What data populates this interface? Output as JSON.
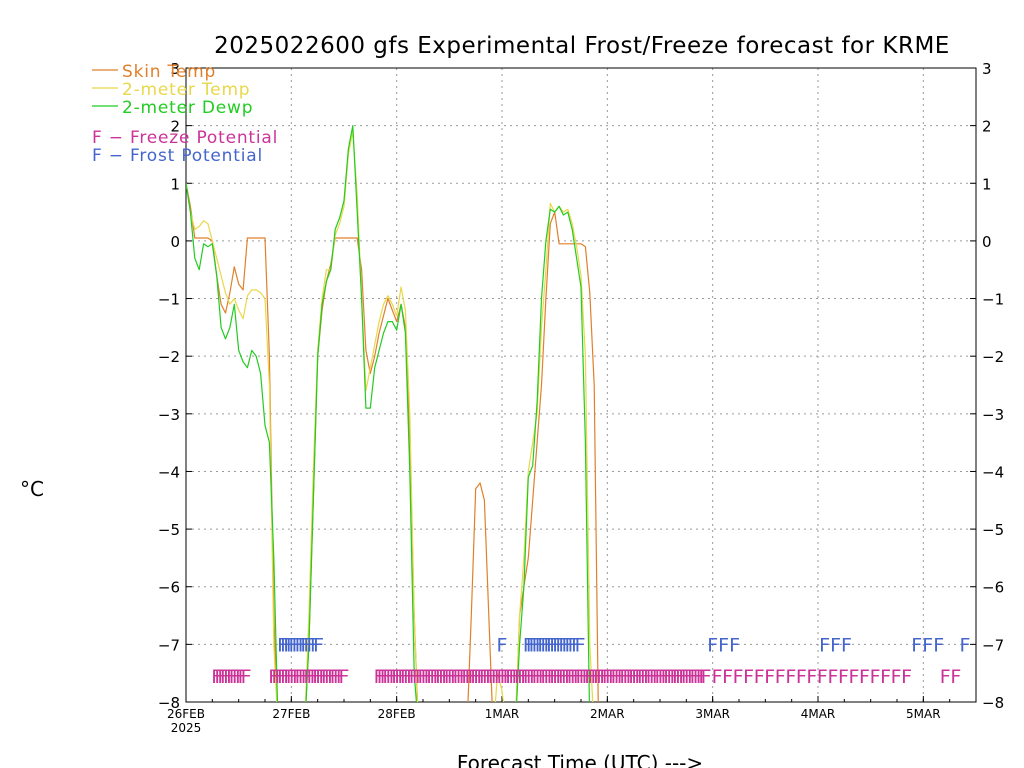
{
  "chart_data": {
    "type": "line",
    "title": "2025022600 gfs Experimental Frost/Freeze forecast for KRME",
    "xlabel": "Forecast Time (UTC) --->",
    "ylabel": "°C",
    "ylim": [
      -8,
      3
    ],
    "yticks": [
      3,
      2,
      1,
      0,
      -1,
      -2,
      -3,
      -4,
      -5,
      -6,
      -7,
      -8
    ],
    "ytick_labels": [
      "3",
      "2",
      "1",
      "0",
      "−1",
      "−2",
      "−3",
      "−4",
      "−5",
      "−6",
      "−7",
      "−8"
    ],
    "xlim": [
      0,
      180
    ],
    "x_unit": "hours after 2025-02-26 00 UTC",
    "xticks": [
      {
        "x": 0,
        "label": "26FEB",
        "sublabel": "2025"
      },
      {
        "x": 24,
        "label": "27FEB",
        "sublabel": ""
      },
      {
        "x": 48,
        "label": "28FEB",
        "sublabel": ""
      },
      {
        "x": 72,
        "label": "1MAR",
        "sublabel": ""
      },
      {
        "x": 96,
        "label": "2MAR",
        "sublabel": ""
      },
      {
        "x": 120,
        "label": "3MAR",
        "sublabel": ""
      },
      {
        "x": 144,
        "label": "4MAR",
        "sublabel": ""
      },
      {
        "x": 168,
        "label": "5MAR",
        "sublabel": ""
      }
    ],
    "grid": true,
    "legend_position": "top-left",
    "series": [
      {
        "name": "Skin Temp",
        "color": "#e0802c",
        "points": [
          [
            0,
            1.0
          ],
          [
            1,
            0.6
          ],
          [
            2,
            0.05
          ],
          [
            3,
            0.05
          ],
          [
            4,
            0.05
          ],
          [
            5,
            0.05
          ],
          [
            6,
            0.0
          ],
          [
            7,
            -0.6
          ],
          [
            8,
            -1.1
          ],
          [
            9,
            -1.25
          ],
          [
            10,
            -0.9
          ],
          [
            11,
            -0.45
          ],
          [
            12,
            -0.75
          ],
          [
            13,
            -0.85
          ],
          [
            14,
            0.05
          ],
          [
            15,
            0.05
          ],
          [
            16,
            0.05
          ],
          [
            17,
            0.05
          ],
          [
            18,
            0.05
          ],
          [
            19,
            -2.0
          ],
          [
            20,
            -6.5
          ],
          [
            21,
            -8.5
          ],
          [
            27,
            -8.5
          ],
          [
            28,
            -7.0
          ],
          [
            29,
            -4.5
          ],
          [
            30,
            -2.0
          ],
          [
            31,
            -1.2
          ],
          [
            32,
            -0.7
          ],
          [
            33,
            -0.4
          ],
          [
            34,
            0.05
          ],
          [
            35,
            0.05
          ],
          [
            36,
            0.05
          ],
          [
            37,
            0.05
          ],
          [
            38,
            0.05
          ],
          [
            39,
            0.05
          ],
          [
            40,
            -0.5
          ],
          [
            41,
            -1.9
          ],
          [
            42,
            -2.3
          ],
          [
            43,
            -2.0
          ],
          [
            44,
            -1.6
          ],
          [
            45,
            -1.3
          ],
          [
            46,
            -1.0
          ],
          [
            47,
            -1.2
          ],
          [
            48,
            -1.4
          ],
          [
            49,
            -1.1
          ],
          [
            50,
            -1.5
          ],
          [
            51,
            -3.5
          ],
          [
            52,
            -6.5
          ],
          [
            53,
            -8.5
          ],
          [
            64,
            -8.5
          ],
          [
            65,
            -6.5
          ],
          [
            66,
            -4.3
          ],
          [
            67,
            -4.2
          ],
          [
            68,
            -4.5
          ],
          [
            69,
            -6.5
          ],
          [
            70,
            -8.5
          ],
          [
            75,
            -8.5
          ],
          [
            76,
            -6.5
          ],
          [
            77,
            -6.0
          ],
          [
            78,
            -5.5
          ],
          [
            79,
            -4.5
          ],
          [
            80,
            -3.5
          ],
          [
            81,
            -2.5
          ],
          [
            82,
            -1.0
          ],
          [
            83,
            0.3
          ],
          [
            84,
            0.5
          ],
          [
            85,
            -0.05
          ],
          [
            86,
            -0.05
          ],
          [
            87,
            -0.05
          ],
          [
            88,
            -0.05
          ],
          [
            89,
            -0.05
          ],
          [
            90,
            -0.05
          ],
          [
            91,
            -0.1
          ],
          [
            92,
            -0.9
          ],
          [
            93,
            -2.5
          ],
          [
            94,
            -8.5
          ]
        ]
      },
      {
        "name": "2-meter Temp",
        "color": "#e8d84a",
        "points": [
          [
            0,
            1.0
          ],
          [
            1,
            0.5
          ],
          [
            2,
            0.2
          ],
          [
            3,
            0.25
          ],
          [
            4,
            0.35
          ],
          [
            5,
            0.3
          ],
          [
            6,
            0.0
          ],
          [
            7,
            -0.3
          ],
          [
            8,
            -0.6
          ],
          [
            9,
            -0.9
          ],
          [
            10,
            -1.1
          ],
          [
            11,
            -1.0
          ],
          [
            12,
            -1.2
          ],
          [
            13,
            -1.35
          ],
          [
            14,
            -0.95
          ],
          [
            15,
            -0.85
          ],
          [
            16,
            -0.85
          ],
          [
            17,
            -0.9
          ],
          [
            18,
            -1.0
          ],
          [
            19,
            -2.5
          ],
          [
            20,
            -7.0
          ],
          [
            21,
            -8.5
          ],
          [
            27,
            -8.5
          ],
          [
            28,
            -6.5
          ],
          [
            29,
            -4.0
          ],
          [
            30,
            -1.9
          ],
          [
            31,
            -1.0
          ],
          [
            32,
            -0.5
          ],
          [
            33,
            -0.5
          ],
          [
            34,
            0.1
          ],
          [
            35,
            0.3
          ],
          [
            36,
            0.6
          ],
          [
            37,
            1.5
          ],
          [
            38,
            1.9
          ],
          [
            39,
            0.8
          ],
          [
            40,
            -1.0
          ],
          [
            41,
            -2.6
          ],
          [
            42,
            -2.2
          ],
          [
            43,
            -1.8
          ],
          [
            44,
            -1.4
          ],
          [
            45,
            -1.1
          ],
          [
            46,
            -0.95
          ],
          [
            47,
            -1.1
          ],
          [
            48,
            -1.3
          ],
          [
            49,
            -0.8
          ],
          [
            50,
            -1.2
          ],
          [
            51,
            -3.0
          ],
          [
            52,
            -6.5
          ],
          [
            53,
            -8.5
          ],
          [
            70,
            -8.5
          ],
          [
            71,
            -7.5
          ],
          [
            72,
            -7.8
          ],
          [
            73,
            -8.5
          ],
          [
            75,
            -8.5
          ],
          [
            76,
            -6.5
          ],
          [
            77,
            -5.5
          ],
          [
            78,
            -4.0
          ],
          [
            79,
            -3.5
          ],
          [
            80,
            -3.0
          ],
          [
            81,
            -1.5
          ],
          [
            82,
            -0.5
          ],
          [
            83,
            0.65
          ],
          [
            84,
            0.5
          ],
          [
            85,
            0.6
          ],
          [
            86,
            0.5
          ],
          [
            87,
            0.55
          ],
          [
            88,
            0.3
          ],
          [
            89,
            -0.1
          ],
          [
            90,
            -0.6
          ],
          [
            91,
            -2.0
          ],
          [
            92,
            -7.0
          ],
          [
            93,
            -8.5
          ]
        ]
      },
      {
        "name": "2-meter Dewp",
        "color": "#22cc22",
        "points": [
          [
            0,
            1.0
          ],
          [
            1,
            0.5
          ],
          [
            2,
            -0.3
          ],
          [
            3,
            -0.5
          ],
          [
            4,
            -0.05
          ],
          [
            5,
            -0.1
          ],
          [
            6,
            -0.05
          ],
          [
            7,
            -0.6
          ],
          [
            8,
            -1.5
          ],
          [
            9,
            -1.7
          ],
          [
            10,
            -1.5
          ],
          [
            11,
            -1.1
          ],
          [
            12,
            -1.9
          ],
          [
            13,
            -2.1
          ],
          [
            14,
            -2.2
          ],
          [
            15,
            -1.9
          ],
          [
            16,
            -2.0
          ],
          [
            17,
            -2.3
          ],
          [
            18,
            -3.2
          ],
          [
            19,
            -3.5
          ],
          [
            20,
            -5.5
          ],
          [
            21,
            -8.5
          ],
          [
            27,
            -8.5
          ],
          [
            28,
            -7.0
          ],
          [
            29,
            -4.5
          ],
          [
            30,
            -2.0
          ],
          [
            31,
            -1.1
          ],
          [
            32,
            -0.7
          ],
          [
            33,
            -0.5
          ],
          [
            34,
            0.2
          ],
          [
            35,
            0.4
          ],
          [
            36,
            0.7
          ],
          [
            37,
            1.6
          ],
          [
            38,
            2.0
          ],
          [
            39,
            0.5
          ],
          [
            40,
            -1.0
          ],
          [
            41,
            -2.9
          ],
          [
            42,
            -2.9
          ],
          [
            43,
            -2.2
          ],
          [
            44,
            -1.9
          ],
          [
            45,
            -1.6
          ],
          [
            46,
            -1.4
          ],
          [
            47,
            -1.4
          ],
          [
            48,
            -1.55
          ],
          [
            49,
            -1.1
          ],
          [
            50,
            -1.6
          ],
          [
            51,
            -4.0
          ],
          [
            52,
            -7.5
          ],
          [
            53,
            -8.5
          ],
          [
            75,
            -8.5
          ],
          [
            76,
            -7.0
          ],
          [
            77,
            -6.0
          ],
          [
            78,
            -4.1
          ],
          [
            79,
            -3.9
          ],
          [
            80,
            -2.8
          ],
          [
            81,
            -1.0
          ],
          [
            82,
            0.0
          ],
          [
            83,
            0.55
          ],
          [
            84,
            0.5
          ],
          [
            85,
            0.6
          ],
          [
            86,
            0.45
          ],
          [
            87,
            0.5
          ],
          [
            88,
            0.2
          ],
          [
            89,
            -0.3
          ],
          [
            90,
            -0.8
          ],
          [
            91,
            -3.5
          ],
          [
            92,
            -8.5
          ]
        ]
      }
    ],
    "annotations": [
      {
        "text": "F − Freeze Potential",
        "color": "#cc3399"
      },
      {
        "text": "F − Frost Potential",
        "color": "#4466cc"
      }
    ],
    "flags": {
      "marker": "F",
      "frost": {
        "color": "#4466cc",
        "y": -7.0,
        "hours": [
          22,
          22.7,
          23.4,
          24,
          24.6,
          25.3,
          26,
          26.7,
          27.3,
          28,
          28.7,
          29.5,
          30.2,
          72,
          78,
          78.7,
          79.3,
          80,
          80.7,
          81.3,
          82,
          82.7,
          83.3,
          84,
          84.7,
          85.4,
          86.1,
          86.8,
          87.5,
          88.2,
          89,
          89.8,
          120,
          122.5,
          125,
          145.5,
          148,
          150.5,
          166.5,
          169,
          171.5,
          177.5
        ]
      },
      "freeze": {
        "color": "#cc3399",
        "y": -7.55,
        "hours": [
          7,
          7.7,
          8.4,
          9,
          9.7,
          10.4,
          11,
          11.7,
          12.4,
          13,
          13.7,
          20,
          20.7,
          21.4,
          22,
          22.7,
          23.4,
          24,
          24.7,
          25.4,
          26,
          26.7,
          27.4,
          28,
          28.7,
          29.4,
          30,
          30.7,
          31.4,
          32,
          32.7,
          33.4,
          34,
          34.7,
          35.4,
          36,
          44,
          44.7,
          45.4,
          46,
          46.7,
          47.4,
          48,
          48.7,
          49.4,
          50,
          50.7,
          51.4,
          52,
          52.7,
          53.4,
          54,
          54.7,
          55.4,
          56,
          56.7,
          57.4,
          58,
          58.7,
          59.4,
          60,
          60.7,
          61.4,
          62,
          62.7,
          63.4,
          64,
          64.7,
          65.4,
          66,
          66.7,
          67.4,
          68,
          68.7,
          69.4,
          70,
          70.7,
          71.4,
          72,
          72.7,
          73.4,
          74,
          74.7,
          75.4,
          76,
          76.7,
          77.4,
          78,
          78.7,
          79.4,
          80,
          80.7,
          81.4,
          82,
          82.7,
          83.4,
          84,
          84.7,
          85.4,
          86,
          86.7,
          87.4,
          88,
          88.7,
          89.4,
          90,
          90.7,
          91.4,
          92,
          92.7,
          93.4,
          94,
          94.7,
          95.4,
          96,
          96.7,
          97.4,
          98,
          98.7,
          99.4,
          100,
          100.7,
          101.4,
          102,
          102.7,
          103.4,
          104,
          104.7,
          105.4,
          106,
          106.7,
          107.4,
          108,
          108.7,
          109.4,
          110,
          110.7,
          111.4,
          112,
          112.7,
          113.4,
          114,
          114.7,
          115.4,
          116,
          116.7,
          117.4,
          118,
          118.5,
          121,
          123.4,
          125.8,
          128.2,
          130.6,
          133,
          135.4,
          137.8,
          140.2,
          142.6,
          145,
          147.4,
          149.8,
          152.2,
          154.6,
          157,
          159.4,
          161.8,
          164.2,
          173,
          175.4
        ]
      }
    }
  }
}
